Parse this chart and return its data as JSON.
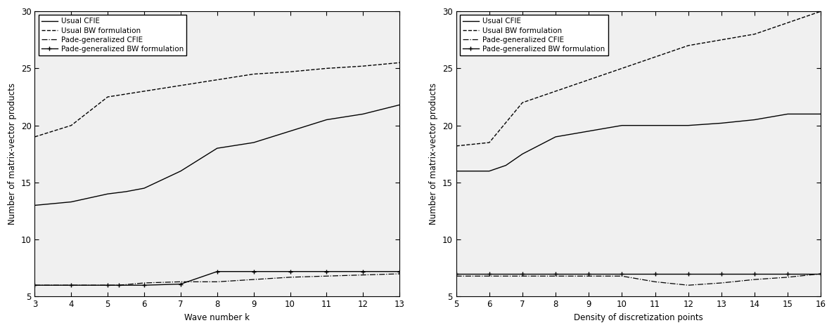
{
  "left": {
    "xlabel": "Wave number k",
    "ylabel": "Number of matrix-vector products",
    "xlim": [
      3,
      13
    ],
    "ylim": [
      5,
      30
    ],
    "xticks": [
      3,
      4,
      5,
      6,
      7,
      8,
      9,
      10,
      11,
      12,
      13
    ],
    "yticks": [
      5,
      10,
      15,
      20,
      25,
      30
    ],
    "usual_cfie_x": [
      3,
      4,
      5,
      5.5,
      6,
      7,
      8,
      9,
      10,
      11,
      12,
      13
    ],
    "usual_cfie_y": [
      13.0,
      13.3,
      14.0,
      14.2,
      14.5,
      16.0,
      18.0,
      18.5,
      19.5,
      20.5,
      21.0,
      21.8
    ],
    "usual_bw_x": [
      3,
      4,
      5,
      6,
      7,
      8,
      9,
      10,
      11,
      12,
      13
    ],
    "usual_bw_y": [
      19.0,
      20.0,
      22.5,
      23.0,
      23.5,
      24.0,
      24.5,
      24.7,
      25.0,
      25.2,
      25.5
    ],
    "pade_cfie_x": [
      3,
      4,
      5,
      5.3,
      6,
      7,
      8,
      9,
      10,
      11,
      12,
      13
    ],
    "pade_cfie_y": [
      6.0,
      6.0,
      6.0,
      6.0,
      6.2,
      6.3,
      6.3,
      6.5,
      6.7,
      6.8,
      6.9,
      7.0
    ],
    "pade_bw_x": [
      3,
      4,
      5,
      5.3,
      6,
      7,
      8,
      9,
      10,
      11,
      12,
      13
    ],
    "pade_bw_y": [
      6.0,
      6.0,
      6.0,
      6.0,
      6.0,
      6.1,
      7.2,
      7.2,
      7.2,
      7.2,
      7.2,
      7.2
    ]
  },
  "right": {
    "xlabel": "Density of discretization points",
    "ylabel": "Number of matrix-vector products",
    "xlim": [
      5,
      16
    ],
    "ylim": [
      5,
      30
    ],
    "xticks": [
      5,
      6,
      7,
      8,
      9,
      10,
      11,
      12,
      13,
      14,
      15,
      16
    ],
    "yticks": [
      5,
      10,
      15,
      20,
      25,
      30
    ],
    "usual_cfie_x": [
      5,
      6,
      6.5,
      7,
      8,
      9,
      10,
      11,
      12,
      13,
      14,
      15,
      16
    ],
    "usual_cfie_y": [
      16.0,
      16.0,
      16.5,
      17.5,
      19.0,
      19.5,
      20.0,
      20.0,
      20.0,
      20.2,
      20.5,
      21.0,
      21.0
    ],
    "usual_bw_x": [
      5,
      6,
      7,
      8,
      9,
      10,
      11,
      12,
      13,
      14,
      15,
      16
    ],
    "usual_bw_y": [
      18.2,
      18.5,
      22.0,
      23.0,
      24.0,
      25.0,
      26.0,
      27.0,
      27.5,
      28.0,
      29.0,
      30.0
    ],
    "pade_cfie_x": [
      5,
      6,
      7,
      8,
      9,
      10,
      11,
      12,
      13,
      14,
      15,
      16
    ],
    "pade_cfie_y": [
      6.8,
      6.8,
      6.8,
      6.8,
      6.8,
      6.8,
      6.3,
      6.0,
      6.2,
      6.5,
      6.7,
      7.0
    ],
    "pade_bw_x": [
      5,
      6,
      7,
      8,
      9,
      10,
      11,
      12,
      13,
      14,
      15,
      16
    ],
    "pade_bw_y": [
      7.0,
      7.0,
      7.0,
      7.0,
      7.0,
      7.0,
      7.0,
      7.0,
      7.0,
      7.0,
      7.0,
      7.0
    ]
  },
  "legend_labels": [
    "Usual CFIE",
    "Usual BW formulation",
    "Pade-generalized CFIE",
    "Pade-generalized BW formulation"
  ],
  "line_color": "#000000",
  "bg_color": "#ffffff",
  "plot_bg_color": "#f0f0f0",
  "fontsize": 8.5,
  "legend_fontsize": 7.5,
  "figsize": [
    11.86,
    4.7
  ],
  "dpi": 100
}
